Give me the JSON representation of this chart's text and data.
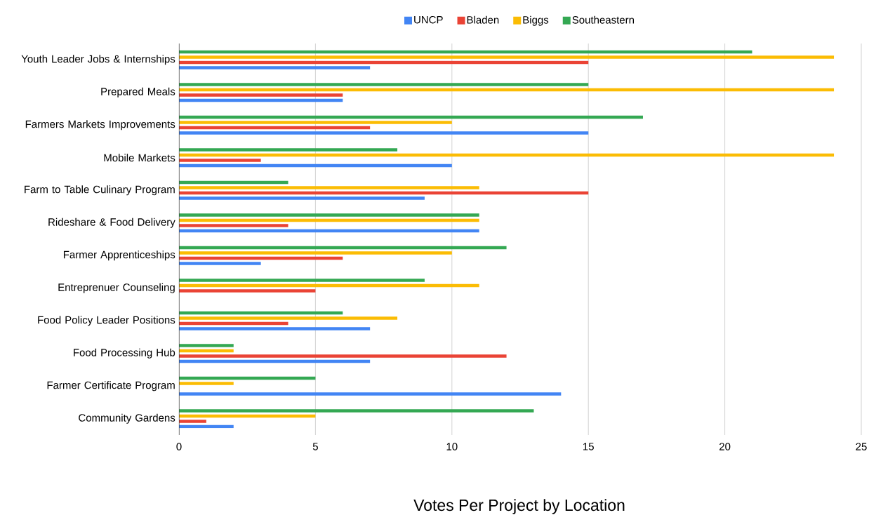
{
  "chart_data": {
    "type": "bar",
    "orientation": "horizontal",
    "title": "Votes Per Project by Location",
    "categories": [
      "Youth Leader Jobs & Internships",
      "Prepared Meals",
      "Farmers Markets Improvements",
      "Mobile Markets",
      "Farm to Table Culinary Program",
      "Rideshare & Food Delivery",
      "Farmer Apprenticeships",
      "Entreprenuer Counseling",
      "Food Policy Leader Positions",
      "Food Processing Hub",
      "Farmer Certificate Program",
      "Community Gardens"
    ],
    "series": [
      {
        "name": "UNCP",
        "color": "#4285f4",
        "values": [
          7,
          6,
          15,
          10,
          9,
          11,
          3,
          null,
          7,
          7,
          14,
          2
        ]
      },
      {
        "name": "Bladen",
        "color": "#ea4335",
        "values": [
          15,
          6,
          7,
          3,
          15,
          4,
          6,
          5,
          4,
          12,
          null,
          1
        ]
      },
      {
        "name": "Biggs",
        "color": "#fbbc04",
        "values": [
          24,
          24,
          10,
          24,
          11,
          11,
          10,
          11,
          8,
          2,
          2,
          5
        ]
      },
      {
        "name": "Southeastern",
        "color": "#34a853",
        "values": [
          21,
          15,
          17,
          8,
          4,
          11,
          12,
          9,
          6,
          2,
          5,
          13
        ]
      }
    ],
    "xlim": [
      0,
      25
    ],
    "xticks": [
      0,
      5,
      10,
      15,
      20,
      25
    ],
    "grid": "x",
    "legend": "top"
  }
}
